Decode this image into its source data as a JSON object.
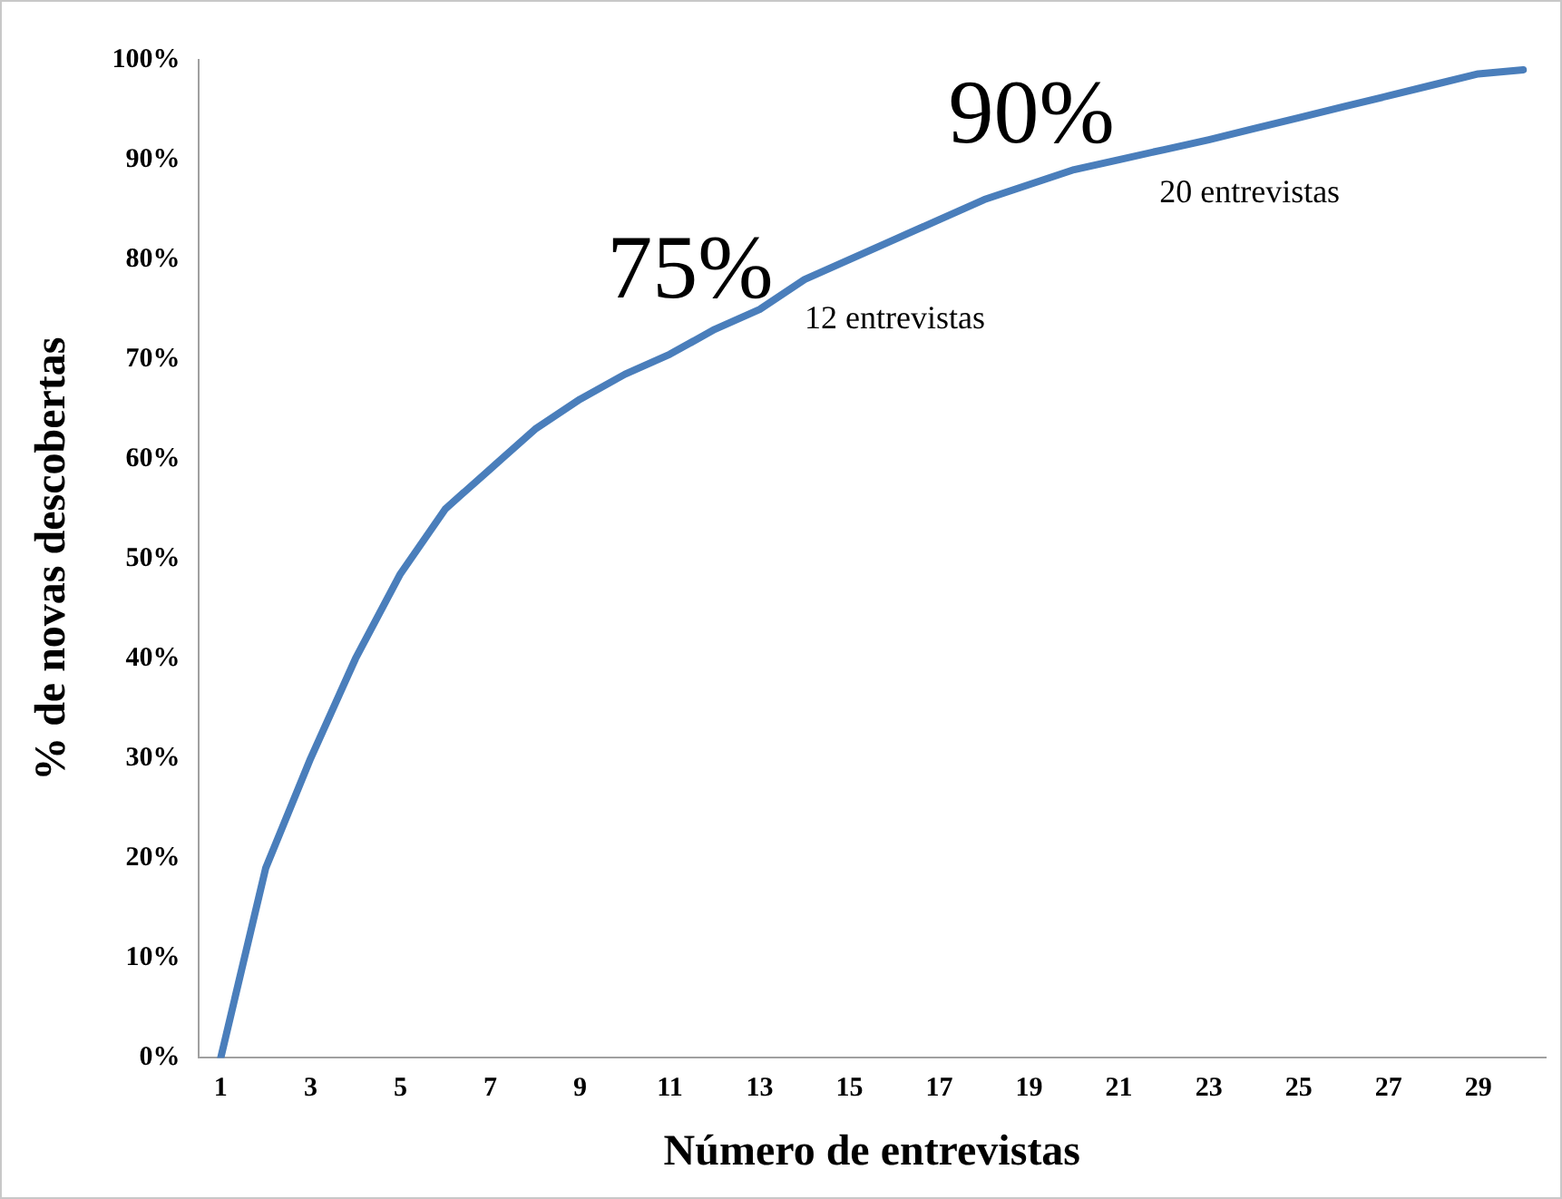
{
  "chart_data": {
    "type": "line",
    "xlabel": "Número de entrevistas",
    "ylabel": "% de novas descobertas",
    "x": [
      1,
      2,
      3,
      4,
      5,
      6,
      7,
      8,
      9,
      10,
      11,
      12,
      13,
      14,
      15,
      16,
      17,
      18,
      19,
      20,
      21,
      22,
      23,
      24,
      25,
      26,
      27,
      28,
      29,
      30
    ],
    "xlim": [
      0.5,
      30.5
    ],
    "xticks": [
      1,
      3,
      5,
      7,
      9,
      11,
      13,
      15,
      17,
      19,
      21,
      23,
      25,
      27,
      29
    ],
    "series": [
      {
        "color": "#4a7ebb",
        "values": [
          0,
          19,
          30,
          40,
          48.5,
          55,
          59,
          63,
          66,
          68.5,
          70.5,
          73,
          75,
          78,
          80,
          82,
          84,
          86,
          87.5,
          89,
          90,
          91,
          92,
          93.1,
          94.2,
          95.3,
          96.4,
          97.5,
          98.6,
          99
        ]
      }
    ],
    "ylim": [
      0,
      100
    ],
    "yticks": [
      {
        "value": 0,
        "label": "0%"
      },
      {
        "value": 10,
        "label": "10%"
      },
      {
        "value": 20,
        "label": "20%"
      },
      {
        "value": 30,
        "label": "30%"
      },
      {
        "value": 40,
        "label": "40%"
      },
      {
        "value": 50,
        "label": "50%"
      },
      {
        "value": 60,
        "label": "60%"
      },
      {
        "value": 70,
        "label": "70%"
      },
      {
        "value": 80,
        "label": "80%"
      },
      {
        "value": 90,
        "label": "90%"
      },
      {
        "value": 100,
        "label": "100%"
      }
    ],
    "grid": false,
    "legend": false,
    "marker": "none",
    "line_style": "solid",
    "annotations": [
      "75%",
      "12 entrevistas",
      "90%",
      "20 entrevistas"
    ]
  }
}
